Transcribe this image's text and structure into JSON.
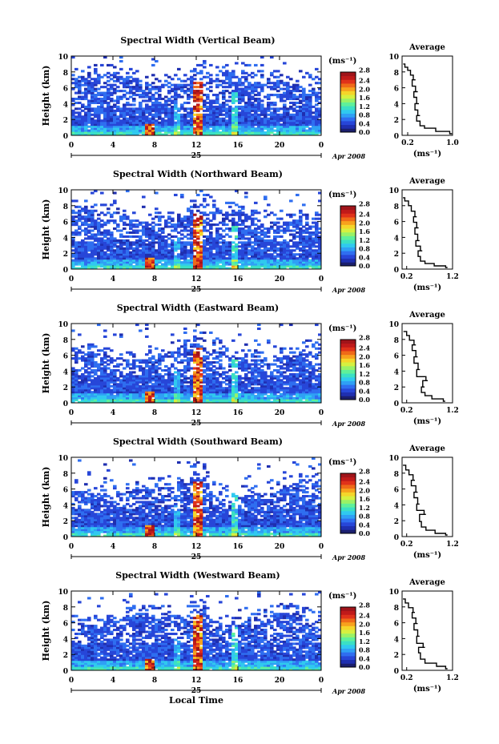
{
  "figure": {
    "x_axis_label": "Local Time",
    "date_label": "Apr 2008",
    "day_label": "25",
    "y_label": "Height (km)",
    "colorbar_label": "(ms⁻¹)",
    "profile_title": "Average",
    "profile_xlabel": "(ms⁻¹)"
  },
  "colorbar": {
    "ticks": [
      "0.0",
      "0.4",
      "0.8",
      "1.2",
      "1.6",
      "2.0",
      "2.4",
      "2.8"
    ],
    "colors": [
      "#1b1f6e",
      "#1f2fb0",
      "#2746d8",
      "#2f6ef0",
      "#2fa0f5",
      "#30c9ef",
      "#3be0c4",
      "#5ff09a",
      "#9af266",
      "#d6f040",
      "#f5d52a",
      "#f7a11d",
      "#ef6a18",
      "#e0321a",
      "#c01a1a",
      "#a0141a"
    ]
  },
  "chart_data": [
    {
      "type": "heatmap",
      "title": "Spectral Width (Vertical Beam)",
      "xticks": [
        "0",
        "4",
        "8",
        "12",
        "16",
        "20",
        "0"
      ],
      "yticks": [
        "0",
        "2",
        "4",
        "6",
        "8",
        "10"
      ],
      "xlim": [
        0,
        24
      ],
      "ylim": [
        0,
        10
      ],
      "profile": {
        "xticks": [
          "0.2",
          "1.0"
        ],
        "xlim": [
          0.1,
          1.0
        ],
        "points": [
          [
            0.95,
            0.2
          ],
          [
            0.7,
            0.5
          ],
          [
            0.5,
            0.9
          ],
          [
            0.42,
            1.2
          ],
          [
            0.36,
            1.8
          ],
          [
            0.38,
            2.5
          ],
          [
            0.33,
            3.2
          ],
          [
            0.36,
            4.0
          ],
          [
            0.31,
            4.8
          ],
          [
            0.34,
            5.5
          ],
          [
            0.28,
            6.2
          ],
          [
            0.3,
            7.0
          ],
          [
            0.25,
            7.6
          ],
          [
            0.2,
            8.2
          ],
          [
            0.15,
            8.6
          ],
          [
            0.12,
            9.0
          ]
        ]
      }
    },
    {
      "type": "heatmap",
      "title": "Spectral Width (Northward Beam)",
      "xticks": [
        "0",
        "4",
        "8",
        "12",
        "16",
        "20",
        "0"
      ],
      "yticks": [
        "0",
        "2",
        "4",
        "6",
        "8",
        "10"
      ],
      "xlim": [
        0,
        24
      ],
      "ylim": [
        0,
        10
      ],
      "profile": {
        "xticks": [
          "0.2",
          "1.2"
        ],
        "xlim": [
          0.1,
          1.2
        ],
        "points": [
          [
            1.05,
            0.2
          ],
          [
            0.8,
            0.4
          ],
          [
            0.6,
            0.7
          ],
          [
            0.5,
            1.0
          ],
          [
            0.45,
            1.6
          ],
          [
            0.5,
            2.3
          ],
          [
            0.4,
            2.9
          ],
          [
            0.44,
            3.6
          ],
          [
            0.38,
            4.4
          ],
          [
            0.42,
            5.2
          ],
          [
            0.35,
            5.9
          ],
          [
            0.38,
            6.6
          ],
          [
            0.3,
            7.3
          ],
          [
            0.24,
            8.0
          ],
          [
            0.16,
            8.6
          ],
          [
            0.12,
            9.0
          ]
        ]
      }
    },
    {
      "type": "heatmap",
      "title": "Spectral Width (Eastward Beam)",
      "xticks": [
        "0",
        "4",
        "8",
        "12",
        "16",
        "20",
        "0"
      ],
      "yticks": [
        "0",
        "2",
        "4",
        "6",
        "8",
        "10"
      ],
      "xlim": [
        0,
        24
      ],
      "ylim": [
        0,
        10
      ],
      "profile": {
        "xticks": [
          "0.2",
          "1.2"
        ],
        "xlim": [
          0.1,
          1.2
        ],
        "points": [
          [
            1.0,
            0.2
          ],
          [
            0.75,
            0.5
          ],
          [
            0.6,
            0.9
          ],
          [
            0.52,
            1.3
          ],
          [
            0.55,
            2.0
          ],
          [
            0.62,
            2.8
          ],
          [
            0.42,
            3.3
          ],
          [
            0.45,
            4.2
          ],
          [
            0.36,
            5.0
          ],
          [
            0.4,
            5.8
          ],
          [
            0.32,
            6.6
          ],
          [
            0.36,
            7.3
          ],
          [
            0.26,
            7.9
          ],
          [
            0.2,
            8.5
          ],
          [
            0.13,
            9.0
          ]
        ]
      }
    },
    {
      "type": "heatmap",
      "title": "Spectral Width (Southward Beam)",
      "xticks": [
        "0",
        "4",
        "8",
        "12",
        "16",
        "20",
        "0"
      ],
      "yticks": [
        "0",
        "2",
        "4",
        "6",
        "8",
        "10"
      ],
      "xlim": [
        0,
        24
      ],
      "ylim": [
        0,
        10
      ],
      "profile": {
        "xticks": [
          "0.2",
          "1.2"
        ],
        "xlim": [
          0.1,
          1.2
        ],
        "points": [
          [
            1.05,
            0.2
          ],
          [
            0.82,
            0.4
          ],
          [
            0.62,
            0.8
          ],
          [
            0.52,
            1.2
          ],
          [
            0.48,
            1.9
          ],
          [
            0.58,
            2.8
          ],
          [
            0.42,
            3.3
          ],
          [
            0.44,
            4.1
          ],
          [
            0.36,
            4.9
          ],
          [
            0.4,
            5.6
          ],
          [
            0.3,
            6.4
          ],
          [
            0.34,
            7.1
          ],
          [
            0.25,
            7.8
          ],
          [
            0.18,
            8.4
          ],
          [
            0.12,
            9.0
          ]
        ]
      }
    },
    {
      "type": "heatmap",
      "title": "Spectral Width (Westward Beam)",
      "xticks": [
        "0",
        "4",
        "8",
        "12",
        "16",
        "20",
        "0"
      ],
      "yticks": [
        "0",
        "2",
        "4",
        "6",
        "8",
        "10"
      ],
      "xlim": [
        0,
        24
      ],
      "ylim": [
        0,
        10
      ],
      "profile": {
        "xticks": [
          "0.2",
          "1.2"
        ],
        "xlim": [
          0.1,
          1.2
        ],
        "points": [
          [
            1.05,
            0.2
          ],
          [
            0.85,
            0.5
          ],
          [
            0.6,
            0.9
          ],
          [
            0.5,
            1.4
          ],
          [
            0.46,
            2.2
          ],
          [
            0.56,
            2.9
          ],
          [
            0.42,
            3.4
          ],
          [
            0.44,
            4.3
          ],
          [
            0.36,
            5.1
          ],
          [
            0.4,
            5.9
          ],
          [
            0.32,
            6.6
          ],
          [
            0.34,
            7.3
          ],
          [
            0.24,
            7.9
          ],
          [
            0.17,
            8.5
          ],
          [
            0.12,
            9.0
          ]
        ]
      }
    }
  ]
}
